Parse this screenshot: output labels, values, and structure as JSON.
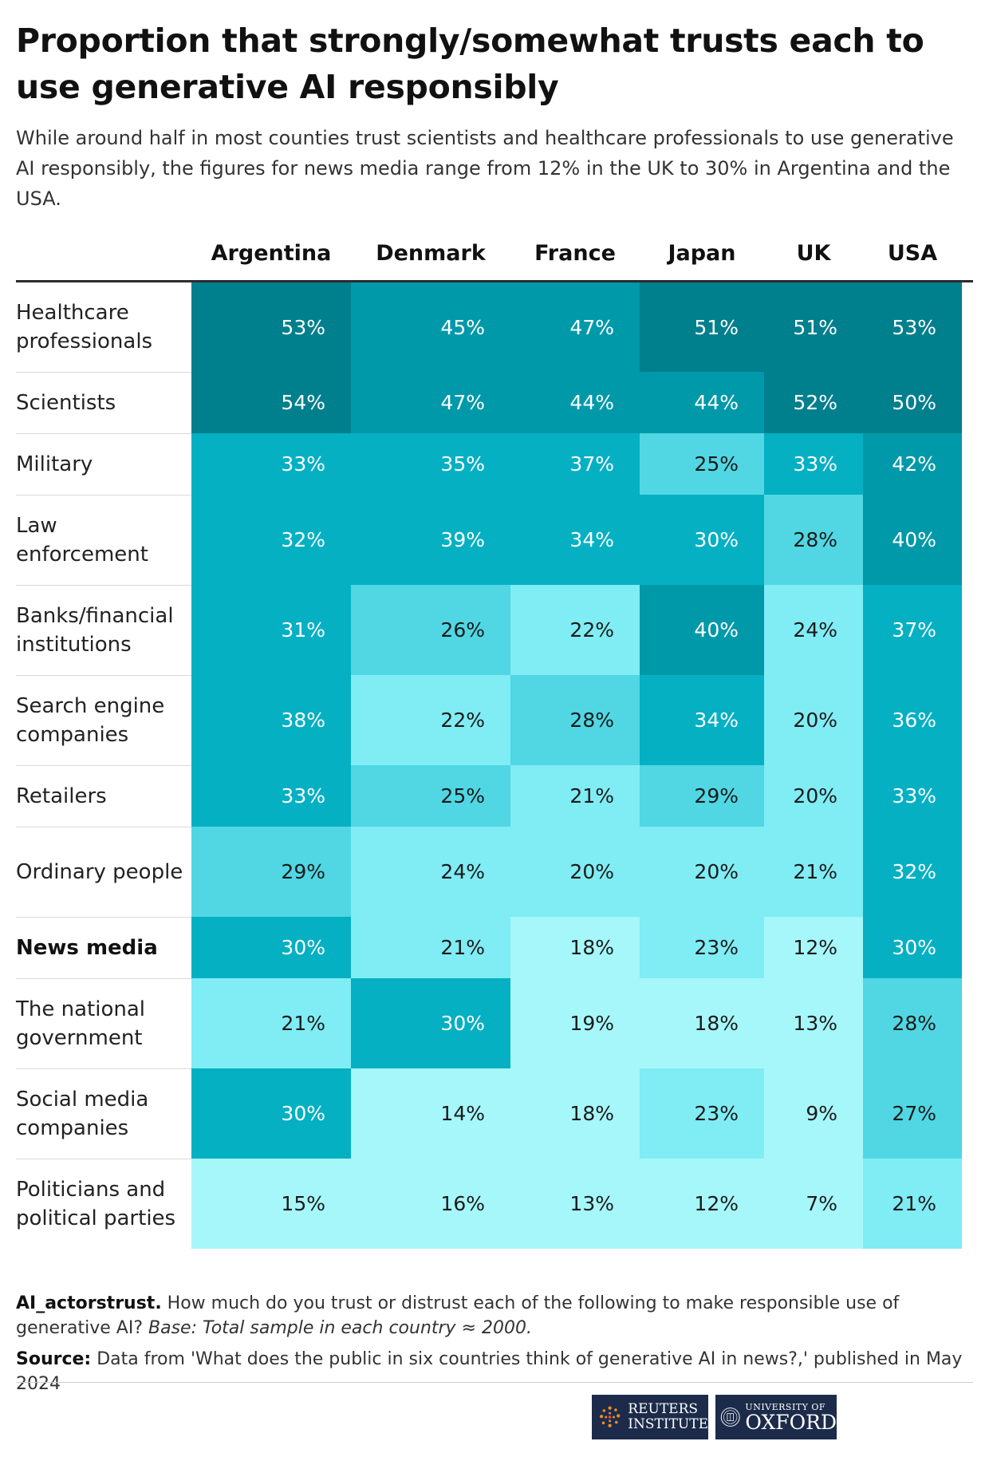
{
  "title": "Proportion that strongly/somewhat trusts each to use generative AI responsibly",
  "subtitle": "While around half in most counties trust scientists and healthcare professionals to use generative AI responsibly, the figures for news media range from 12% in the UK to 30% in Argentina and the USA.",
  "chart_data": {
    "type": "heatmap",
    "columns": [
      "Argentina",
      "Denmark",
      "France",
      "Japan",
      "UK",
      "USA"
    ],
    "rows": [
      "Healthcare professionals",
      "Scientists",
      "Military",
      "Law enforcement",
      "Banks/financial institutions",
      "Search engine companies",
      "Retailers",
      "Ordinary people",
      "News media",
      "The national government",
      "Social media companies",
      "Politicians and political parties"
    ],
    "highlight_row": "News media",
    "unit": "%",
    "values": [
      [
        53,
        45,
        47,
        51,
        51,
        53
      ],
      [
        54,
        47,
        44,
        44,
        52,
        50
      ],
      [
        33,
        35,
        37,
        25,
        33,
        42
      ],
      [
        32,
        39,
        34,
        30,
        28,
        40
      ],
      [
        31,
        26,
        22,
        40,
        24,
        37
      ],
      [
        38,
        22,
        28,
        34,
        20,
        36
      ],
      [
        33,
        25,
        21,
        29,
        20,
        33
      ],
      [
        29,
        24,
        20,
        20,
        21,
        32
      ],
      [
        30,
        21,
        18,
        23,
        12,
        30
      ],
      [
        21,
        30,
        19,
        18,
        13,
        28
      ],
      [
        30,
        14,
        18,
        23,
        9,
        27
      ],
      [
        15,
        16,
        13,
        12,
        7,
        21
      ]
    ],
    "color_scale": [
      "#a6f7fa",
      "#80ecf4",
      "#50d7e3",
      "#05b0c3",
      "#0099a9",
      "#007f8d"
    ]
  },
  "footer": {
    "question_id": "AI_actorstrust.",
    "question": " How much do you trust or distrust each of the following to make responsible use of generative AI? ",
    "base": "Base: Total sample in each country ≈ 2000.",
    "source_label": "Source:",
    "source_text": " Data from 'What does the public in six countries think of generative AI in news?,' published in May 2024"
  },
  "logos": {
    "reuters_line1": "REUTERS",
    "reuters_line2": "INSTITUTE",
    "oxford_line1": "UNIVERSITY OF",
    "oxford_line2": "OXFORD"
  }
}
